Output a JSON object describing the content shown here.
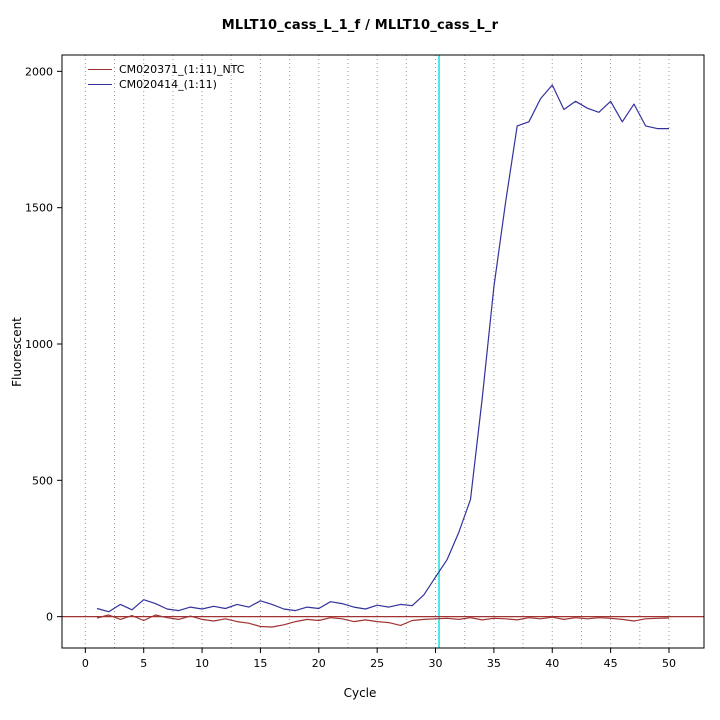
{
  "chart_data": {
    "type": "line",
    "title": "MLLT10_cass_L_1_f / MLLT10_cass_L_r",
    "xlabel": "Cycle",
    "ylabel": "Fluorescent",
    "xlim": [
      -2,
      53
    ],
    "ylim": [
      -115,
      2060
    ],
    "xticks": [
      0,
      5,
      10,
      15,
      20,
      25,
      30,
      35,
      40,
      45,
      50
    ],
    "yticks": [
      0,
      500,
      1000,
      1500,
      2000
    ],
    "grid": {
      "vertical_dotted_every": 2.5,
      "color": "#999999",
      "range": [
        0,
        50
      ]
    },
    "threshold_line": {
      "y": 0,
      "color": "#a03232"
    },
    "marker_line": {
      "x": 30.3,
      "color": "#00dfdf"
    },
    "legend_position": "top-left",
    "x": [
      1,
      2,
      3,
      4,
      5,
      6,
      7,
      8,
      9,
      10,
      11,
      12,
      13,
      14,
      15,
      16,
      17,
      18,
      19,
      20,
      21,
      22,
      23,
      24,
      25,
      26,
      27,
      28,
      29,
      30,
      31,
      32,
      33,
      34,
      35,
      36,
      37,
      38,
      39,
      40,
      41,
      42,
      43,
      44,
      45,
      46,
      47,
      48,
      49,
      50
    ],
    "series": [
      {
        "name": "CM020371_(1:11)_NTC",
        "color": "#a03232",
        "values": [
          -5,
          6,
          -10,
          4,
          -14,
          6,
          -4,
          -10,
          2,
          -10,
          -16,
          -8,
          -18,
          -24,
          -36,
          -38,
          -30,
          -18,
          -10,
          -14,
          -4,
          -8,
          -18,
          -12,
          -18,
          -22,
          -32,
          -14,
          -10,
          -8,
          -6,
          -10,
          -4,
          -12,
          -6,
          -8,
          -12,
          -4,
          -8,
          -2,
          -10,
          -4,
          -8,
          -4,
          -6,
          -10,
          -16,
          -8,
          -6,
          -5
        ]
      },
      {
        "name": "CM020414_(1:11)",
        "color": "#32329e",
        "values": [
          30,
          18,
          45,
          25,
          62,
          48,
          28,
          22,
          35,
          28,
          38,
          30,
          45,
          35,
          58,
          45,
          28,
          22,
          35,
          30,
          55,
          48,
          35,
          28,
          42,
          35,
          45,
          40,
          80,
          145,
          210,
          310,
          430,
          800,
          1210,
          1520,
          1800,
          1815,
          1900,
          1950,
          1860,
          1890,
          1865,
          1850,
          1890,
          1815,
          1880,
          1800,
          1790,
          1790
        ]
      }
    ]
  }
}
